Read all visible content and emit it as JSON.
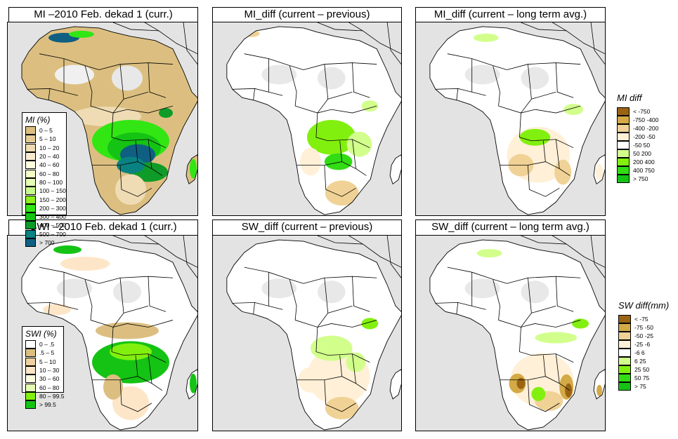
{
  "figure": {
    "panels": [
      {
        "id": "mi-current",
        "title": "MI –2010 Feb. dekad 1 (curr.)",
        "variable": "MI",
        "kind": "current"
      },
      {
        "id": "mi-diff-previous",
        "title": "MI_diff (current – previous)",
        "variable": "MI",
        "kind": "diff-previous"
      },
      {
        "id": "mi-diff-lta",
        "title": "MI_diff (current – long term avg.)",
        "variable": "MI",
        "kind": "diff-lta"
      },
      {
        "id": "swi-current",
        "title": "SWI –2010 Feb. dekad 1 (curr.)",
        "variable": "SWI",
        "kind": "current"
      },
      {
        "id": "sw-diff-previous",
        "title": "SW_diff (current – previous)",
        "variable": "SW",
        "kind": "diff-previous"
      },
      {
        "id": "sw-diff-lta",
        "title": "SW_diff (current – long term avg.)",
        "variable": "SW",
        "kind": "diff-lta"
      }
    ],
    "legends": {
      "mi": {
        "title": "MI (%)",
        "classes": [
          {
            "label": "0 – 5",
            "color": "#dcbf80"
          },
          {
            "label": "5 – 10",
            "color": "#e5cc96"
          },
          {
            "label": "10 – 20",
            "color": "#efdcb4"
          },
          {
            "label": "20 – 40",
            "color": "#f8ebd2"
          },
          {
            "label": "40 – 60",
            "color": "#fdfde0"
          },
          {
            "label": "60 – 80",
            "color": "#f4fec8"
          },
          {
            "label": "80 – 100",
            "color": "#e6feb4"
          },
          {
            "label": "100 – 150",
            "color": "#c8fa8c"
          },
          {
            "label": "150 – 200",
            "color": "#8cf01e"
          },
          {
            "label": "200 – 300",
            "color": "#32e614"
          },
          {
            "label": "300 – 400",
            "color": "#14c314"
          },
          {
            "label": "400 – 500",
            "color": "#0f9b28"
          },
          {
            "label": "500 – 700",
            "color": "#0a8282"
          },
          {
            "label": "> 700",
            "color": "#0f5f82"
          }
        ]
      },
      "mi_diff": {
        "title": "MI diff",
        "classes": [
          {
            "label": "< -750",
            "color": "#9b6414"
          },
          {
            "label": "-750 -400",
            "color": "#d4aa46"
          },
          {
            "label": "-400 -200",
            "color": "#f0d296"
          },
          {
            "label": "-200 -50",
            "color": "#fff0d7"
          },
          {
            "label": "-50 50",
            "color": "#ffffff"
          },
          {
            "label": "50 200",
            "color": "#d2ff8c"
          },
          {
            "label": "200 400",
            "color": "#82f00f"
          },
          {
            "label": "400 750",
            "color": "#32dc14"
          },
          {
            "label": "> 750",
            "color": "#14c314"
          }
        ]
      },
      "swi": {
        "title": "SWI (%)",
        "classes": [
          {
            "label": "0 – .5",
            "color": "#ffffff"
          },
          {
            "label": ".5 – 5",
            "color": "#dcbf80"
          },
          {
            "label": "5 – 10",
            "color": "#efd2a0"
          },
          {
            "label": "10 – 30",
            "color": "#fde6c8"
          },
          {
            "label": "30 – 60",
            "color": "#fdfde0"
          },
          {
            "label": "60 – 80",
            "color": "#e6feb4"
          },
          {
            "label": "80 – 99.5",
            "color": "#82f00f"
          },
          {
            "label": "> 99.5",
            "color": "#14c314"
          }
        ]
      },
      "sw_diff": {
        "title": "SW diff(mm)",
        "classes": [
          {
            "label": "< -75",
            "color": "#9b6414"
          },
          {
            "label": "-75 -50",
            "color": "#d4aa46"
          },
          {
            "label": "-50 -25",
            "color": "#f0d296"
          },
          {
            "label": "-25 -6",
            "color": "#fff0d7"
          },
          {
            "label": "-6 6",
            "color": "#ffffff"
          },
          {
            "label": "6 25",
            "color": "#d2ff8c"
          },
          {
            "label": "25 50",
            "color": "#82f00f"
          },
          {
            "label": "50 75",
            "color": "#32dc14"
          },
          {
            "label": "> 75",
            "color": "#14c314"
          }
        ]
      }
    },
    "colors": {
      "ocean": "#e3e3e3",
      "no_data": "#e0e0e0",
      "border": "#000000"
    }
  }
}
